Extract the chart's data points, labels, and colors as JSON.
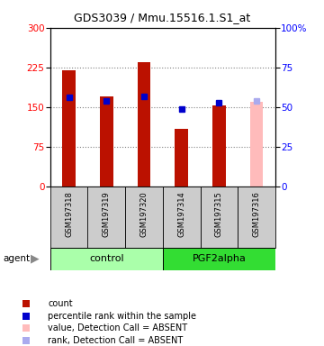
{
  "title": "GDS3039 / Mmu.15516.1.S1_at",
  "samples": [
    "GSM197318",
    "GSM197319",
    "GSM197320",
    "GSM197314",
    "GSM197315",
    "GSM197316"
  ],
  "count_values": [
    220,
    170,
    235,
    110,
    153,
    160
  ],
  "rank_pct": [
    56,
    54,
    57,
    49,
    53,
    54
  ],
  "absent": [
    false,
    false,
    false,
    false,
    false,
    true
  ],
  "ylim_left": [
    0,
    300
  ],
  "ylim_right": [
    0,
    100
  ],
  "yticks_left": [
    0,
    75,
    150,
    225,
    300
  ],
  "yticks_right": [
    0,
    25,
    50,
    75,
    100
  ],
  "color_present_bar": "#bb1100",
  "color_absent_bar": "#ffbbbb",
  "color_present_rank": "#0000cc",
  "color_absent_rank": "#aaaaee",
  "color_control_bg": "#aaffaa",
  "color_pgf2alpha_bg": "#33dd33",
  "color_gray_bg": "#cccccc",
  "legend_items": [
    {
      "label": "count",
      "color": "#bb1100"
    },
    {
      "label": "percentile rank within the sample",
      "color": "#0000cc"
    },
    {
      "label": "value, Detection Call = ABSENT",
      "color": "#ffbbbb"
    },
    {
      "label": "rank, Detection Call = ABSENT",
      "color": "#aaaaee"
    }
  ]
}
